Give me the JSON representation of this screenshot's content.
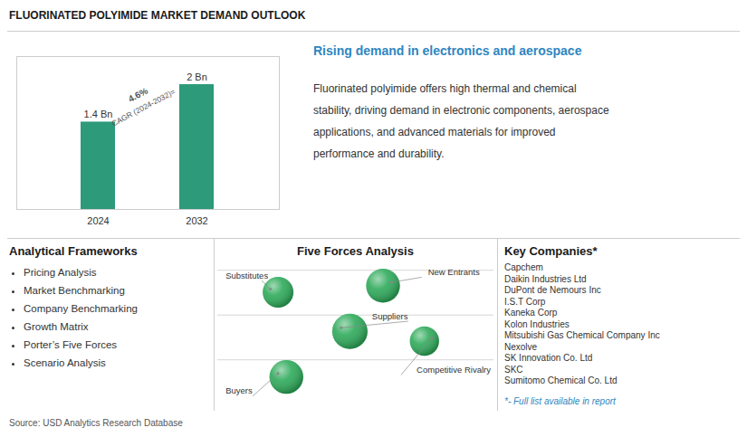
{
  "chart_data": {
    "type": "bar",
    "title": "FLUORINATED POLYIMIDE MARKET DEMAND OUTLOOK",
    "categories": [
      "2024",
      "2032"
    ],
    "values": [
      1.4,
      2.0
    ],
    "value_labels": [
      "1.4 Bn",
      "2 Bn"
    ],
    "data_labels": true,
    "color": "#2d9a7a",
    "ylim": [
      0,
      2.45
    ],
    "tick_labels": "x",
    "annotations": [
      "CAGR (2024-2032)=",
      "4.6%"
    ],
    "sections": [
      {
        "title": "Rising demand in electronics and aerospace",
        "color": "#2e86c1",
        "lines": [
          "Fluorinated polyimide offers high thermal and chemical",
          "stability, driving demand in electronic components, aerospace",
          "applications, and advanced materials for improved",
          "performance and durability."
        ]
      },
      {
        "title": "Analytical Frameworks",
        "items": [
          "Pricing Analysis",
          "Market Benchmarking",
          "Company Benchmarking",
          "Growth Matrix",
          "Porter’s Five Forces",
          "Scenario Analysis"
        ]
      },
      {
        "title": "Five Forces Analysis",
        "color": "#2eaa5a",
        "items": [
          "New Entrants",
          "Substitutes",
          "Suppliers",
          "Competitive Rivalry",
          "Buyers"
        ]
      },
      {
        "title": "Key Companies*",
        "items": [
          "Capchem",
          "Daikin Industries Ltd",
          "DuPont de Nemours Inc",
          "I.S.T Corp",
          "Kaneka Corp",
          "Kolon Industries",
          "Mitsubishi Gas Chemical Company Inc",
          "Nexolve",
          "SK Innovation Co. Ltd",
          "SKC",
          "Sumitomo Chemical Co. Ltd"
        ]
      }
    ],
    "notes": [
      {
        "text": "*- Full list available in report",
        "color": "#2e86c1"
      }
    ],
    "source": "Source: USD Analytics Research Database"
  }
}
